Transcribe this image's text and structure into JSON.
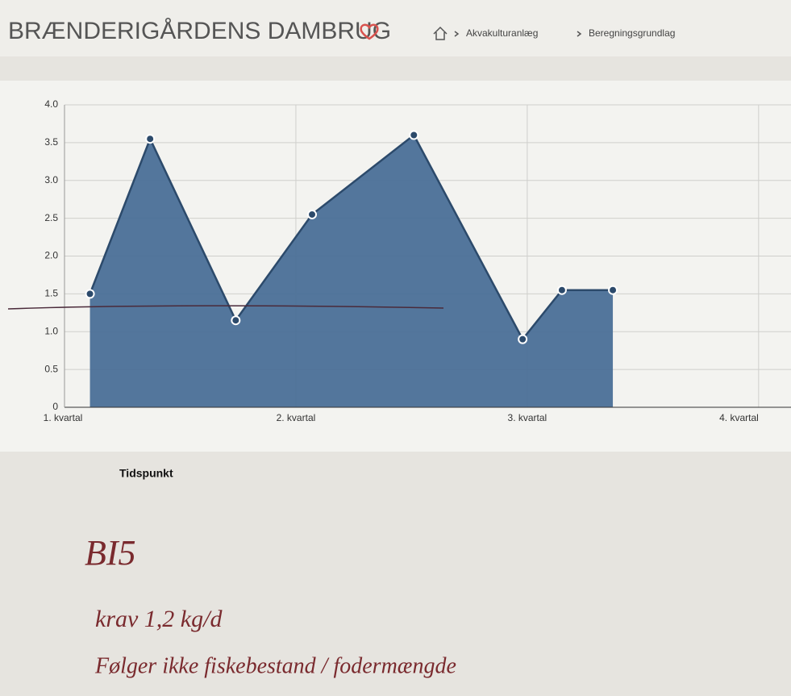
{
  "header": {
    "title": "BRÆNDERIGÅRDENS DAMBRUG",
    "breadcrumbs": [
      "Akvakulturanlæg",
      "Beregningsgrundlag"
    ]
  },
  "chart_data": {
    "type": "area",
    "x_label": "Tidspunkt",
    "x": [
      1.11,
      1.37,
      1.74,
      2.07,
      2.51,
      2.98,
      3.15,
      3.37
    ],
    "values": [
      1.5,
      3.55,
      1.15,
      2.55,
      3.6,
      0.9,
      1.55,
      1.55
    ],
    "color": "#4a6f97",
    "line_color": "#2c4a6b",
    "xlim": [
      1,
      4.14
    ],
    "xticks": [
      {
        "value": 1,
        "label": "1. kvartal"
      },
      {
        "value": 2,
        "label": "2. kvartal"
      },
      {
        "value": 3,
        "label": "3. kvartal"
      },
      {
        "value": 4,
        "label": "4. kvartal"
      }
    ],
    "ylim": [
      0,
      4
    ],
    "yticks": [
      0,
      0.5,
      {
        "value": 1,
        "label": "1.0"
      },
      1.5,
      {
        "value": 2,
        "label": "2.0"
      },
      2.5,
      {
        "value": 3,
        "label": "3.0"
      },
      3.5,
      {
        "value": 4,
        "label": "4.0"
      }
    ],
    "grid": true
  },
  "notes": [
    "BI5",
    "krav 1,2 kg/d",
    "Følger ikke fiskebestand / fodermængde"
  ]
}
